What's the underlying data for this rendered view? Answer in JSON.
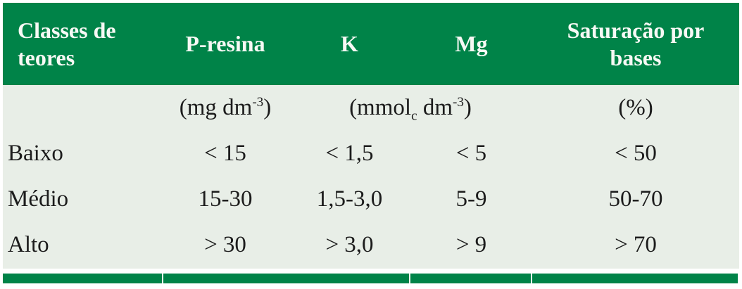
{
  "colors": {
    "header_green": "#008348",
    "body_background": "#e8eee7",
    "header_text": "#f7f9f5",
    "body_text": "#1c1c1c"
  },
  "table": {
    "header": {
      "classes": "Classes de teores",
      "p_resina": "P-resina",
      "k": "K",
      "mg": "Mg",
      "saturacao": "Saturação por bases"
    },
    "units": {
      "p_resina": {
        "pre": "(mg dm",
        "sup": "-3",
        "post": ")"
      },
      "k_mg": {
        "pre": "(mmol",
        "sub": "c",
        "mid": " dm",
        "sup": "-3",
        "post": ")"
      },
      "saturacao": "(%)"
    },
    "rows": [
      {
        "label": "Baixo",
        "p_resina": "< 15",
        "k": "< 1,5",
        "mg": "< 5",
        "saturacao": "< 50"
      },
      {
        "label": "Médio",
        "p_resina": "15-30",
        "k": "1,5-3,0",
        "mg": "5-9",
        "saturacao": "50-70"
      },
      {
        "label": "Alto",
        "p_resina": "> 30",
        "k": "> 3,0",
        "mg": "> 9",
        "saturacao": "> 70"
      }
    ]
  }
}
